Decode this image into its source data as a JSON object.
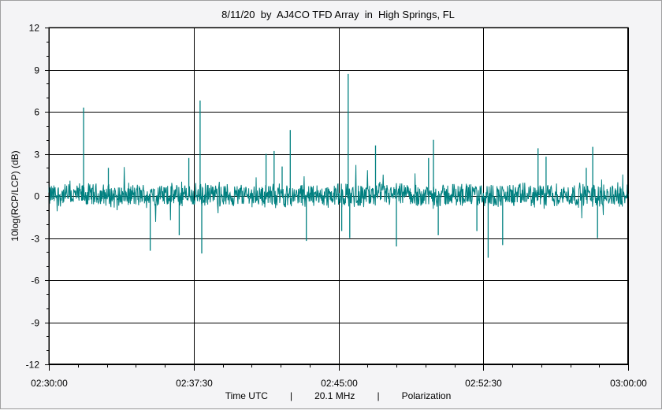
{
  "title": "8/11/20  by  AJ4CO TFD Array  in  High Springs, FL",
  "footer": {
    "x_label": "Time UTC",
    "sep1": "|",
    "frequency": "20.1 MHz",
    "sep2": "|",
    "mode": "Polarization"
  },
  "chart_data": {
    "type": "line",
    "title": "8/11/20  by  AJ4CO TFD Array  in  High Springs, FL",
    "xlabel": "Time UTC",
    "ylabel": "10log(RCP/LCP) (dB)",
    "ylim": [
      -12,
      12
    ],
    "y_ticks": [
      12,
      9,
      6,
      3,
      0,
      -3,
      -6,
      -9,
      -12
    ],
    "xlim": [
      "02:30:00",
      "03:00:00"
    ],
    "x_ticks": [
      "02:30:00",
      "02:37:30",
      "02:45:00",
      "02:52:30",
      "03:00:00"
    ],
    "grid": true,
    "series": [
      {
        "color": "#008080",
        "baseline": 0,
        "noise_band": [
          -0.9,
          1.0
        ],
        "spikes": [
          {
            "t": "02:31:48",
            "peak": 6.3
          },
          {
            "t": "02:33:05",
            "peak": 2.0
          },
          {
            "t": "02:35:15",
            "peak": -3.9
          },
          {
            "t": "02:36:45",
            "peak": -2.8
          },
          {
            "t": "02:37:15",
            "peak": 2.7
          },
          {
            "t": "02:37:50",
            "peak": 6.8
          },
          {
            "t": "02:37:55",
            "peak": -4.1
          },
          {
            "t": "02:41:15",
            "peak": 3.0
          },
          {
            "t": "02:41:40",
            "peak": 3.2
          },
          {
            "t": "02:42:05",
            "peak": 2.1
          },
          {
            "t": "02:42:30",
            "peak": 4.7
          },
          {
            "t": "02:43:20",
            "peak": -3.2
          },
          {
            "t": "02:45:10",
            "peak": -2.5
          },
          {
            "t": "02:45:30",
            "peak": 8.7
          },
          {
            "t": "02:45:35",
            "peak": -3.0
          },
          {
            "t": "02:46:55",
            "peak": 3.6
          },
          {
            "t": "02:48:00",
            "peak": -3.6
          },
          {
            "t": "02:49:40",
            "peak": 2.7
          },
          {
            "t": "02:49:55",
            "peak": 4.0
          },
          {
            "t": "02:50:10",
            "peak": -2.8
          },
          {
            "t": "02:52:10",
            "peak": -2.5
          },
          {
            "t": "02:52:45",
            "peak": -4.4
          },
          {
            "t": "02:53:30",
            "peak": -3.5
          },
          {
            "t": "02:55:20",
            "peak": 3.4
          },
          {
            "t": "02:55:45",
            "peak": 2.8
          },
          {
            "t": "02:57:50",
            "peak": 2.0
          },
          {
            "t": "02:58:10",
            "peak": 3.5
          },
          {
            "t": "02:58:25",
            "peak": -3.0
          }
        ]
      }
    ]
  }
}
